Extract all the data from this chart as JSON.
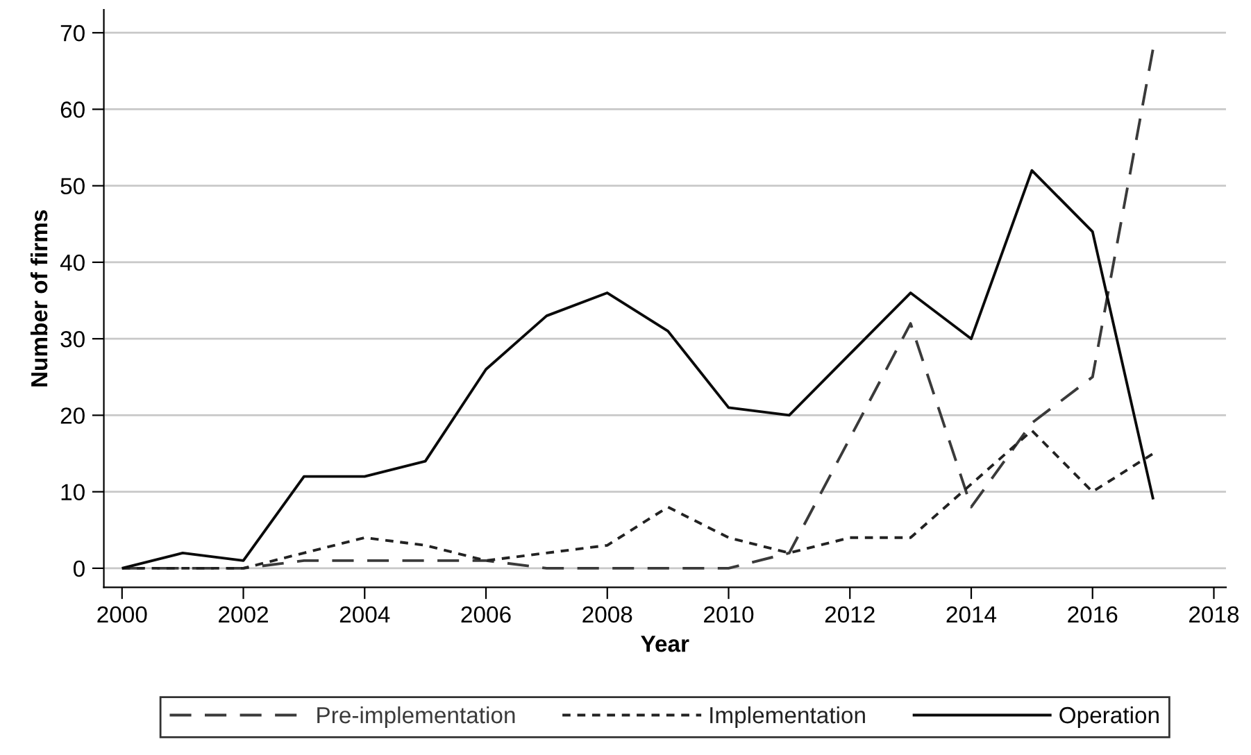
{
  "chart_data": {
    "type": "line",
    "xlabel": "Year",
    "ylabel": "Number of firms",
    "x": [
      2000,
      2001,
      2002,
      2003,
      2004,
      2005,
      2006,
      2007,
      2008,
      2009,
      2010,
      2011,
      2012,
      2013,
      2014,
      2015,
      2016,
      2017
    ],
    "series": [
      {
        "name": "Pre-implementation",
        "color": "#3a3a3a",
        "line_style": "dashed",
        "values": [
          0,
          0,
          0,
          1,
          1,
          1,
          1,
          0,
          0,
          0,
          0,
          2,
          17,
          32,
          8,
          19,
          25,
          68
        ]
      },
      {
        "name": "Implementation",
        "color": "#222222",
        "line_style": "dotted",
        "values": [
          0,
          0,
          0,
          2,
          4,
          3,
          1,
          2,
          3,
          8,
          4,
          2,
          4,
          4,
          11,
          18,
          10,
          15
        ]
      },
      {
        "name": "Operation",
        "color": "#0a0a0a",
        "line_style": "solid",
        "values": [
          0,
          2,
          1,
          12,
          12,
          14,
          26,
          33,
          36,
          31,
          21,
          20,
          28,
          36,
          30,
          52,
          44,
          9
        ]
      }
    ],
    "xlim": [
      1999.7,
      2018.2
    ],
    "xticks": [
      2000,
      2002,
      2004,
      2006,
      2008,
      2010,
      2012,
      2014,
      2016,
      2018
    ],
    "ylim": [
      -2.5,
      73
    ],
    "yticks": [
      0,
      10,
      20,
      30,
      40,
      50,
      60,
      70
    ],
    "grid": "y",
    "legend": "bottom"
  }
}
